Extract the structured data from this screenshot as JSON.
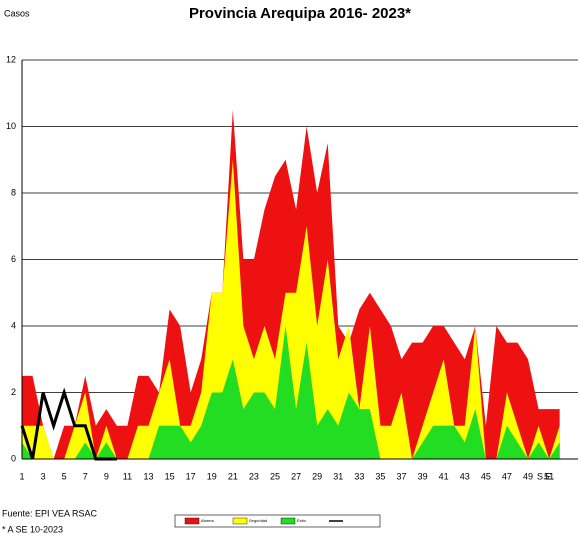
{
  "chart_data": {
    "type": "area",
    "title": "Provincia Arequipa  2016- 2023*",
    "y_label": "Casos",
    "x_label": "S.E.",
    "source": "Fuente: EPI VEA RSAC",
    "note": "* A  SE  10-2023",
    "categories": [
      1,
      null,
      3,
      null,
      5,
      null,
      7,
      null,
      9,
      null,
      11,
      null,
      13,
      null,
      15,
      null,
      17,
      null,
      19,
      null,
      21,
      null,
      23,
      null,
      25,
      null,
      27,
      null,
      29,
      null,
      31,
      null,
      33,
      null,
      35,
      null,
      37,
      null,
      39,
      null,
      41,
      null,
      43,
      null,
      45,
      null,
      47,
      null,
      49,
      null,
      51,
      null
    ],
    "ylim": [
      0,
      12
    ],
    "yticks": [
      0,
      2,
      4,
      6,
      8,
      10,
      12
    ],
    "grid": true,
    "series": [
      {
        "name": "Alarma",
        "color": "#ee1111",
        "values": [
          2.5,
          2.5,
          1,
          0,
          1,
          1,
          2.5,
          1,
          1.5,
          1,
          1,
          2.5,
          2.5,
          2,
          4.5,
          4,
          2,
          3,
          5,
          5,
          10.5,
          6,
          6,
          7.5,
          8.5,
          9,
          7.5,
          10,
          8,
          9.5,
          4,
          3.5,
          4.5,
          5,
          4.5,
          4,
          3,
          3.5,
          3.5,
          4,
          4,
          3.5,
          3,
          4,
          1,
          4,
          3.5,
          3.5,
          3,
          1.5,
          1.5,
          1.5
        ]
      },
      {
        "name": "Seguridad",
        "color": "#ffff00",
        "values": [
          1,
          1,
          1,
          0,
          0,
          1,
          2,
          0,
          1,
          0,
          0,
          1,
          1,
          2,
          3,
          1,
          1,
          2,
          5,
          5,
          9,
          4,
          3,
          4,
          3,
          5,
          5,
          7,
          4,
          6,
          3,
          4,
          1.5,
          4,
          1,
          1,
          2,
          0,
          1,
          2,
          3,
          1,
          1,
          4,
          0,
          0,
          2,
          1,
          0,
          1,
          0,
          1
        ]
      },
      {
        "name": "Éxito",
        "color": "#22dd22",
        "values": [
          0.5,
          0,
          0,
          0,
          0,
          0,
          0.5,
          0,
          0.5,
          0,
          0,
          0,
          0,
          1,
          1,
          1,
          0.5,
          1,
          2,
          2,
          3,
          1.5,
          2,
          2,
          1.5,
          4,
          1.5,
          3.5,
          1,
          1.5,
          1,
          2,
          1.5,
          1.5,
          0,
          0,
          0,
          0,
          0.5,
          1,
          1,
          1,
          0.5,
          1.5,
          0,
          0,
          1,
          0.5,
          0,
          0.5,
          0,
          0.5
        ]
      },
      {
        "type": "line",
        "color": "#000000",
        "values": [
          1,
          0,
          2,
          1,
          2,
          1,
          1,
          0,
          0,
          0,
          null,
          null,
          null,
          null,
          null,
          null,
          null,
          null,
          null,
          null,
          null,
          null,
          null,
          null,
          null,
          null,
          null,
          null,
          null,
          null,
          null,
          null,
          null,
          null,
          null,
          null,
          null,
          null,
          null,
          null,
          null,
          null,
          null,
          null,
          null,
          null,
          null,
          null,
          null,
          null,
          null,
          null
        ]
      }
    ]
  }
}
